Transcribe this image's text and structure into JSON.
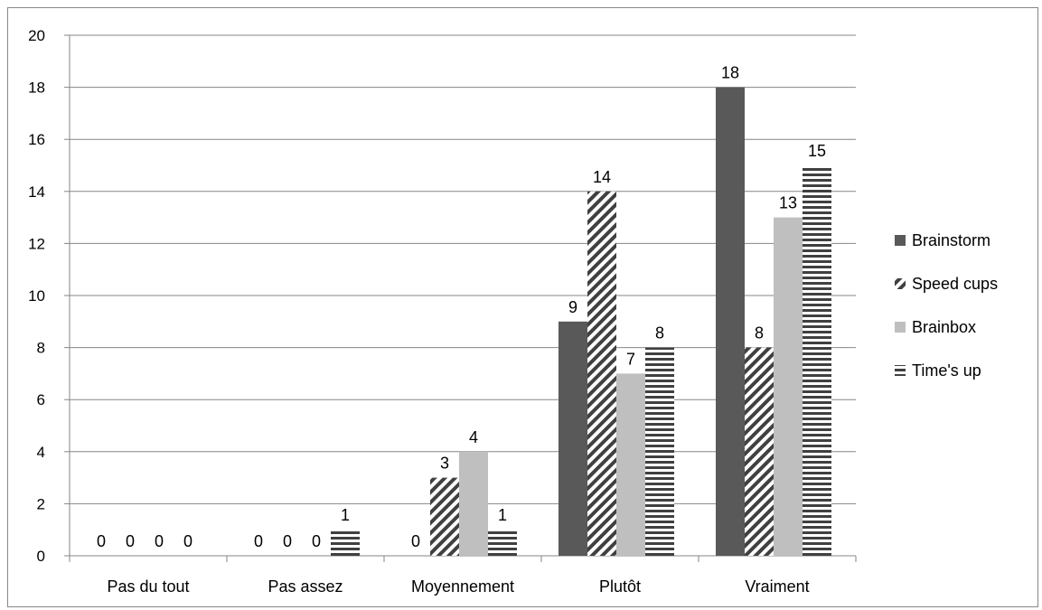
{
  "chart_data": {
    "type": "bar",
    "categories": [
      "Pas du tout",
      "Pas assez",
      "Moyennement",
      "Plutôt",
      "Vraiment"
    ],
    "series": [
      {
        "name": "Brainstorm",
        "values": [
          0,
          0,
          0,
          9,
          18
        ],
        "pattern": "solid",
        "color": "#595959"
      },
      {
        "name": "Speed cups",
        "values": [
          0,
          0,
          3,
          14,
          8
        ],
        "pattern": "diagonal",
        "color": "#404040"
      },
      {
        "name": "Brainbox",
        "values": [
          0,
          0,
          4,
          7,
          13
        ],
        "pattern": "solid",
        "color": "#bfbfbf"
      },
      {
        "name": "Time's up",
        "values": [
          0,
          1,
          1,
          8,
          15
        ],
        "pattern": "horizontal",
        "color": "#404040"
      }
    ],
    "data_labels": [
      [
        "0",
        "0",
        "",
        "9",
        "18"
      ],
      [
        "0",
        "0",
        "3",
        "14",
        "8"
      ],
      [
        "0",
        "0",
        "4",
        "7",
        "13"
      ],
      [
        "0",
        "1",
        "1",
        "8",
        "15"
      ]
    ],
    "extra_labels": [
      {
        "category": "Moyennement",
        "text": "0"
      }
    ],
    "ylim": [
      0,
      20
    ],
    "yticks": [
      "0",
      "2",
      "4",
      "6",
      "8",
      "10",
      "12",
      "14",
      "16",
      "18",
      "20"
    ],
    "grid": true,
    "legend": "right",
    "title": "",
    "xlabel": "",
    "ylabel": ""
  }
}
